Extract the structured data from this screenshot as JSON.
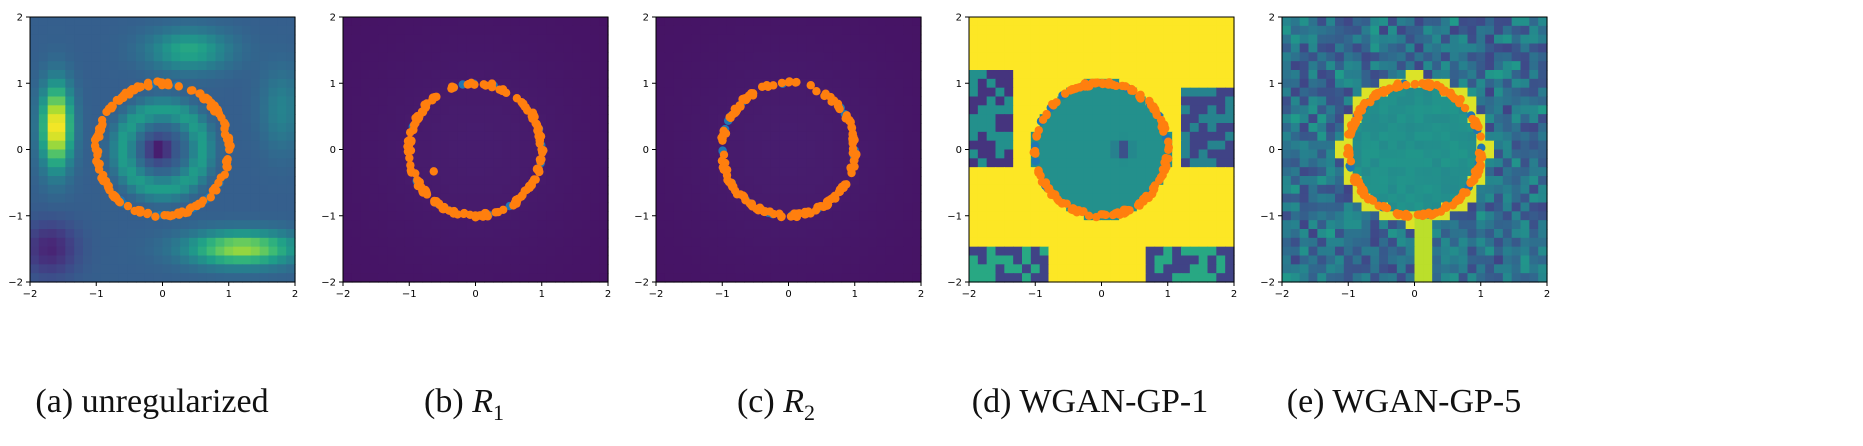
{
  "figure": {
    "panels": [
      {
        "caption_prefix": "(a)",
        "caption_text": "unregularized",
        "caption_sub": ""
      },
      {
        "caption_prefix": "(b)",
        "caption_text": "R",
        "caption_sub": "1"
      },
      {
        "caption_prefix": "(c)",
        "caption_text": "R",
        "caption_sub": "2"
      },
      {
        "caption_prefix": "(d)",
        "caption_text": "WGAN-GP-1",
        "caption_sub": ""
      },
      {
        "caption_prefix": "(e)",
        "caption_text": "WGAN-GP-5",
        "caption_sub": ""
      }
    ]
  },
  "chart_data": [
    {
      "type": "heatmap",
      "title": "",
      "panel": "(a) unregularized",
      "xlim": [
        -2,
        2
      ],
      "ylim": [
        -2,
        2
      ],
      "xticks": [
        "−2",
        "−1",
        "0",
        "1",
        "2"
      ],
      "yticks": [
        "−2",
        "−1",
        "0",
        "1",
        "2"
      ],
      "colormap": "viridis",
      "real_data": {
        "shape": "circle",
        "center": [
          0,
          0
        ],
        "radius": 1,
        "color": "#1f77b4"
      },
      "generated_data": {
        "shape": "circle",
        "center": [
          0,
          0
        ],
        "radius": 1,
        "color": "#ff7f0e"
      },
      "critic_field": "structured: ring at r≈0.6 inside, bright lobes left and lower-right"
    },
    {
      "type": "heatmap",
      "title": "",
      "panel": "(b) R1",
      "xlim": [
        -2,
        2
      ],
      "ylim": [
        -2,
        2
      ],
      "xticks": [
        "−2",
        "−1",
        "0",
        "1",
        "2"
      ],
      "yticks": [
        "−2",
        "−1",
        "0",
        "1",
        "2"
      ],
      "colormap": "viridis",
      "real_data": {
        "shape": "circle",
        "center": [
          0,
          0
        ],
        "radius": 1,
        "color": "#1f77b4"
      },
      "generated_data": {
        "shape": "circle",
        "center": [
          0,
          0
        ],
        "radius": 1,
        "color": "#ff7f0e",
        "outlier": [
          -0.63,
          -0.33
        ]
      },
      "critic_field": "nearly uniform dark purple"
    },
    {
      "type": "heatmap",
      "title": "",
      "panel": "(c) R2",
      "xlim": [
        -2,
        2
      ],
      "ylim": [
        -2,
        2
      ],
      "xticks": [
        "−2",
        "−1",
        "0",
        "1",
        "2"
      ],
      "yticks": [
        "−2",
        "−1",
        "0",
        "1",
        "2"
      ],
      "colormap": "viridis",
      "real_data": {
        "shape": "circle",
        "center": [
          0,
          0
        ],
        "radius": 1,
        "color": "#1f77b4"
      },
      "generated_data": {
        "shape": "circle",
        "center": [
          0,
          0
        ],
        "radius": 1,
        "color": "#ff7f0e"
      },
      "critic_field": "nearly uniform dark purple"
    },
    {
      "type": "heatmap",
      "title": "",
      "panel": "(d) WGAN-GP-1",
      "xlim": [
        -2,
        2
      ],
      "ylim": [
        -2,
        2
      ],
      "xticks": [
        "−2",
        "−1",
        "0",
        "1",
        "2"
      ],
      "yticks": [
        "−2",
        "−1",
        "0",
        "1",
        "2"
      ],
      "colormap": "viridis",
      "real_data": {
        "shape": "circle",
        "center": [
          0,
          0
        ],
        "radius": 1,
        "color": "#1f77b4"
      },
      "generated_data": {
        "shape": "circle",
        "center": [
          0,
          0
        ],
        "radius": 1,
        "color": "#ff7f0e"
      },
      "critic_field": "teal disk inside circle, mostly saturated yellow outside"
    },
    {
      "type": "heatmap",
      "title": "",
      "panel": "(e) WGAN-GP-5",
      "xlim": [
        -2,
        2
      ],
      "ylim": [
        -2,
        2
      ],
      "xticks": [
        "−2",
        "−1",
        "0",
        "1",
        "2"
      ],
      "yticks": [
        "−2",
        "−1",
        "0",
        "1",
        "2"
      ],
      "colormap": "viridis",
      "real_data": {
        "shape": "circle",
        "center": [
          0,
          0
        ],
        "radius": 1,
        "color": "#1f77b4"
      },
      "generated_data": {
        "shape": "circle",
        "center": [
          0,
          0
        ],
        "radius": 1,
        "color": "#ff7f0e"
      },
      "critic_field": "teal disk inside circle, noisy radial streaks outside"
    }
  ]
}
